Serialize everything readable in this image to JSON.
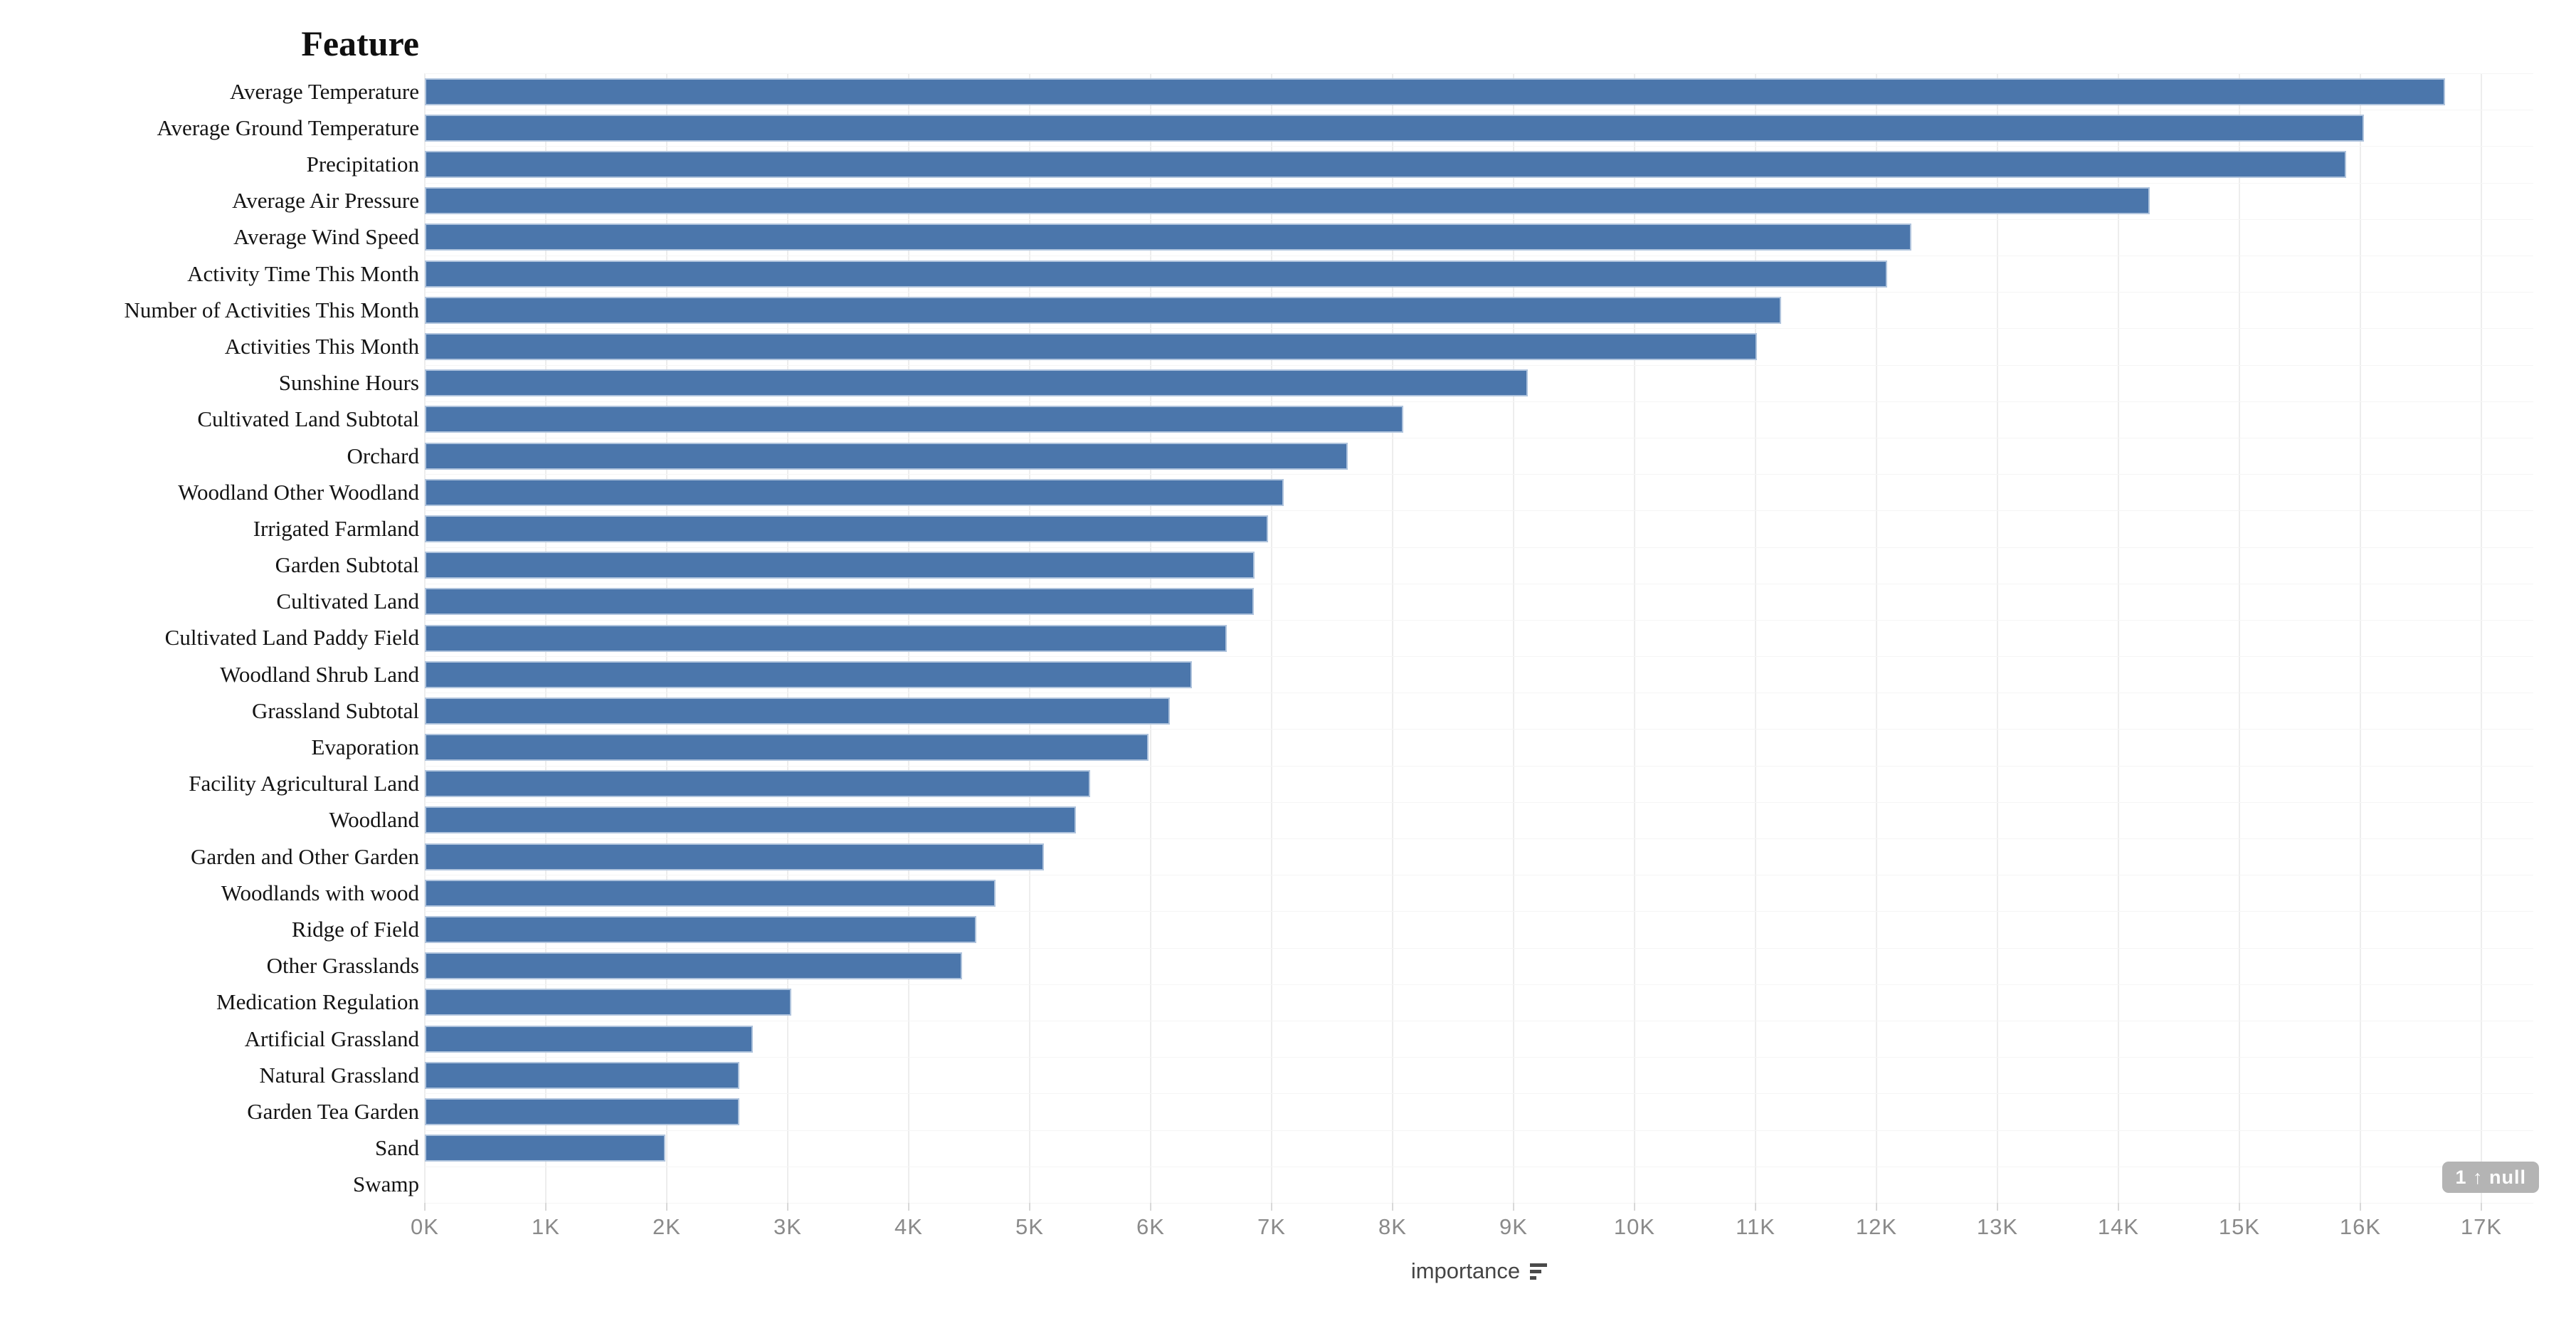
{
  "chart_data": {
    "type": "bar",
    "orientation": "horizontal",
    "title": "Feature",
    "xlabel": "importance",
    "xlim": [
      0,
      17400
    ],
    "grid": "vertical light gray lines every 1K",
    "legend": "none",
    "x_tick_labels": [
      "0K",
      "1K",
      "2K",
      "3K",
      "4K",
      "5K",
      "6K",
      "7K",
      "8K",
      "9K",
      "10K",
      "11K",
      "12K",
      "13K",
      "14K",
      "15K",
      "16K",
      "17K"
    ],
    "categories": [
      "Average Temperature",
      "Average Ground Temperature",
      "Precipitation",
      "Average Air Pressure",
      "Average Wind Speed",
      "Activity Time This Month",
      "Number of Activities This Month",
      "Activities This Month",
      "Sunshine Hours",
      "Cultivated Land Subtotal",
      "Orchard",
      "Woodland Other Woodland",
      "Irrigated Farmland",
      "Garden Subtotal",
      "Cultivated Land",
      "Cultivated Land Paddy Field",
      "Woodland Shrub Land",
      "Grassland Subtotal",
      "Evaporation",
      "Facility Agricultural Land",
      "Woodland",
      "Garden and Other Garden",
      "Woodlands with wood",
      "Ridge of Field",
      "Other Grasslands",
      "Medication Regulation",
      "Artificial Grassland",
      "Natural Grassland",
      "Garden Tea Garden",
      "Sand",
      "Swamp"
    ],
    "values": [
      16700,
      16030,
      15880,
      14260,
      12290,
      12090,
      11210,
      11010,
      9120,
      8090,
      7630,
      7100,
      6970,
      6860,
      6850,
      6630,
      6340,
      6160,
      5980,
      5500,
      5380,
      5120,
      4720,
      4560,
      4440,
      3030,
      2710,
      2600,
      2600,
      1990,
      null
    ],
    "null_count_label": "1 ↑ null",
    "colors": {
      "bar_fill": "#4b76ab",
      "bar_border": "#b0c4dd",
      "gridline": "#ededed",
      "tick_text": "#8a8a8a",
      "axis_title_text": "#454545",
      "null_badge_bg": "#b4b4b4",
      "null_badge_text": "#ffffff"
    }
  }
}
